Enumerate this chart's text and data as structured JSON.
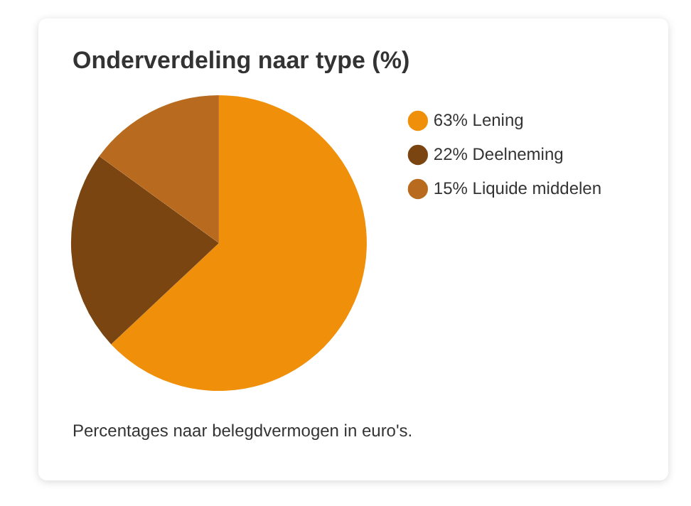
{
  "chart_data": {
    "type": "pie",
    "title": "Onderverdeling naar type (%)",
    "categories": [
      "63% Lening",
      "22% Deelneming",
      "15% Liquide middelen"
    ],
    "values": [
      63,
      22,
      15
    ],
    "colors": [
      "#f0900a",
      "#7a4510",
      "#b86b1e"
    ],
    "legend": "right",
    "annotations": [
      "Percentages naar belegdvermogen in euro's."
    ]
  }
}
